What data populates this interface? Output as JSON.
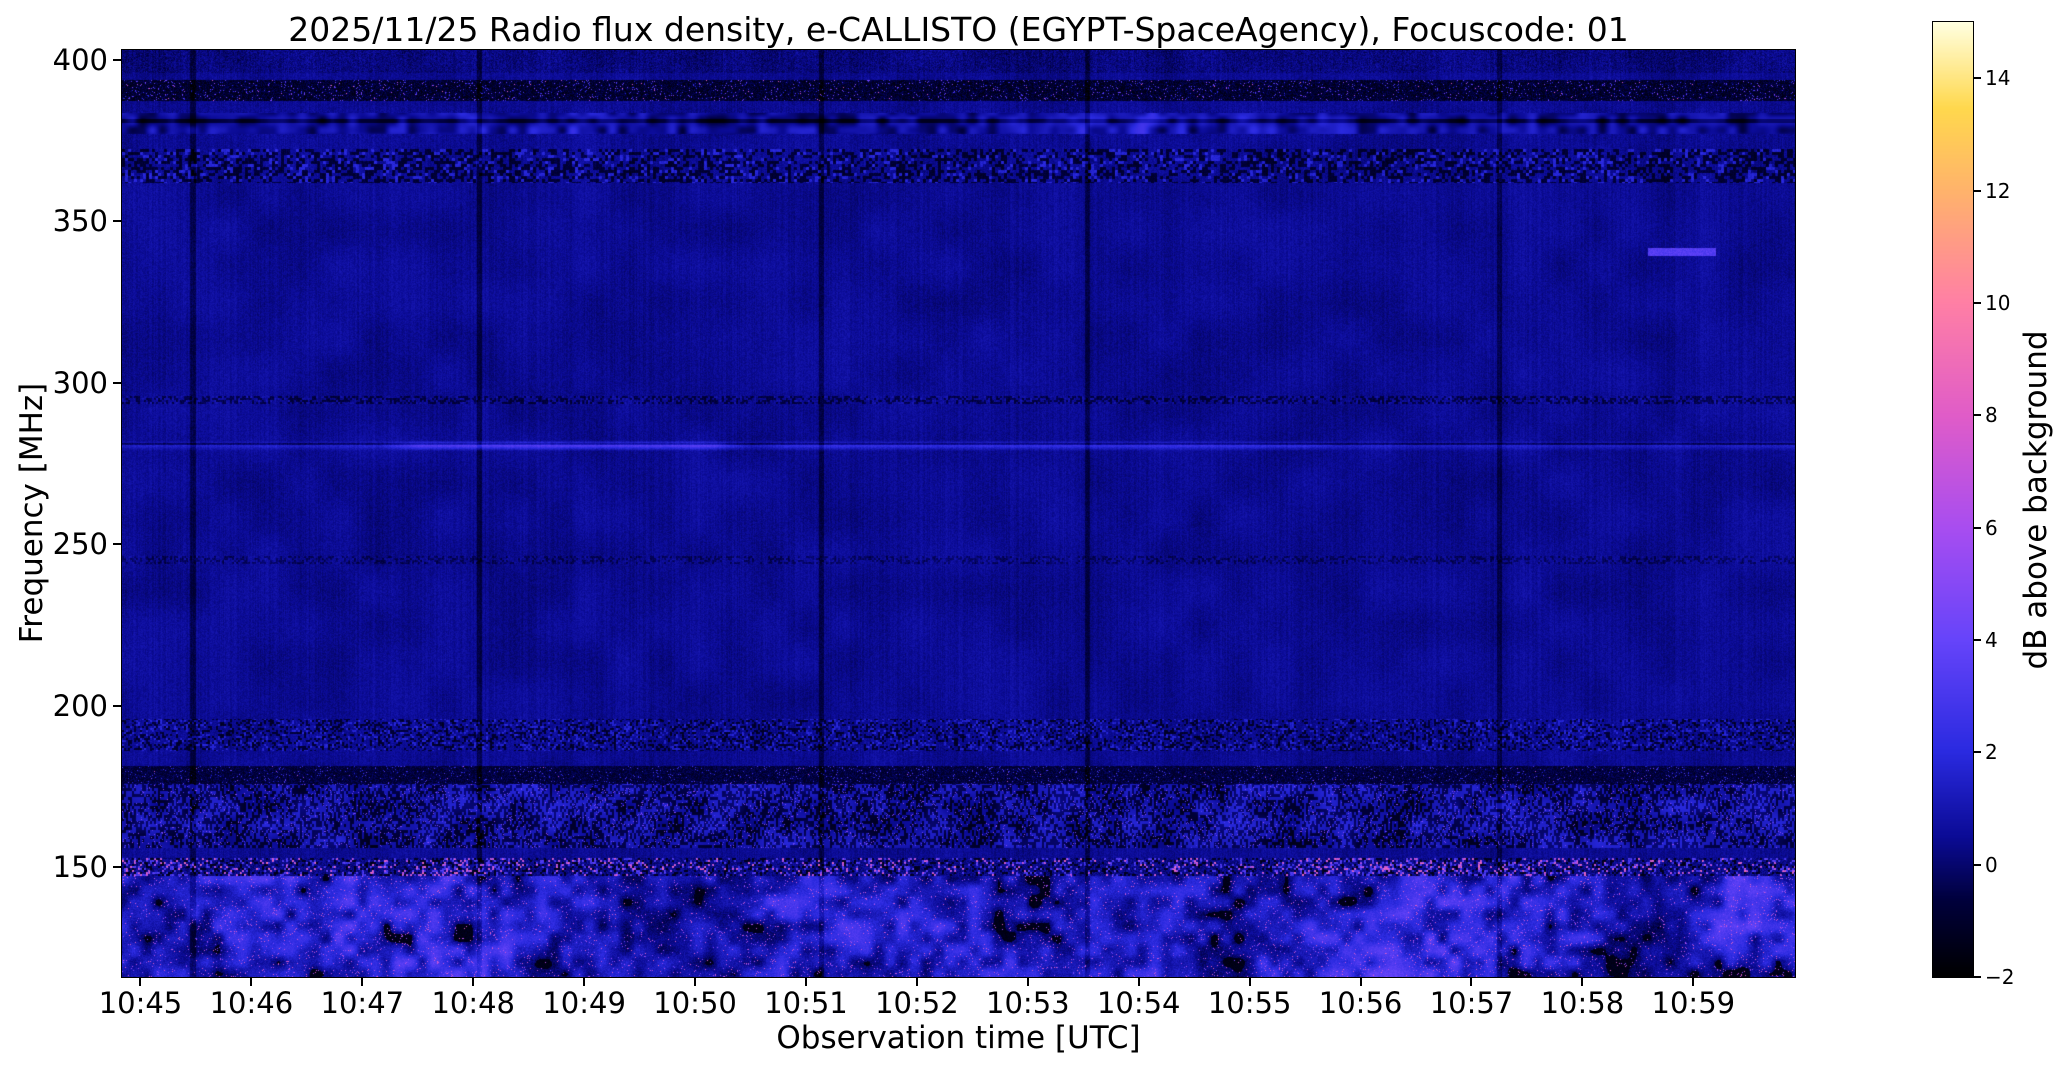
{
  "figure": {
    "background": "#ffffff"
  },
  "chart_data": {
    "type": "heatmap",
    "title": "2025/11/25  Radio flux density, e-CALLISTO (EGYPT-SpaceAgency), Focuscode: 01",
    "xlabel": "Observation time [UTC]",
    "ylabel": "Frequency [MHz]",
    "x_axis": {
      "tick_labels": [
        "10:45",
        "10:46",
        "10:47",
        "10:48",
        "10:49",
        "10:50",
        "10:51",
        "10:52",
        "10:53",
        "10:54",
        "10:55",
        "10:56",
        "10:57",
        "10:58",
        "10:59"
      ],
      "tick_interval_s": 60,
      "domain_s": [
        -10,
        895
      ]
    },
    "y_axis": {
      "min": 116,
      "max": 403,
      "tick_values": [
        400,
        350,
        300,
        250,
        200,
        150
      ]
    },
    "colorbar": {
      "label": "dB above background",
      "min": -2,
      "max": 15,
      "ticks": [
        -2,
        0,
        2,
        4,
        6,
        8,
        10,
        12,
        14
      ],
      "stops": [
        [
          0.0,
          "#000000"
        ],
        [
          0.08,
          "#00003c"
        ],
        [
          0.147,
          "#0b0b96"
        ],
        [
          0.235,
          "#2a2ae0"
        ],
        [
          0.353,
          "#6644fa"
        ],
        [
          0.47,
          "#a84df0"
        ],
        [
          0.588,
          "#e05cc8"
        ],
        [
          0.706,
          "#ff7fa5"
        ],
        [
          0.824,
          "#ffb36b"
        ],
        [
          0.91,
          "#ffd84d"
        ],
        [
          1.0,
          "#ffffe0"
        ]
      ]
    },
    "background_model": {
      "level": 0.45,
      "pixel_noise": 0.6,
      "column_noise": 0.35,
      "patch_noise": 0.5,
      "patch_scale": 36
    },
    "features": {
      "bands": [
        {
          "name": "top-edge-noise",
          "f": [
            396,
            403.1
          ],
          "style": "noisy",
          "offset": -0.25,
          "amp": 0.45
        },
        {
          "name": "rfi-390",
          "f": [
            387.5,
            394
          ],
          "style": "rfi_dark_speckle",
          "base": -1.7,
          "spread": 1.5,
          "speck_p": 0.05,
          "speck_v": [
            1.5,
            5
          ],
          "hot_p": 0.004,
          "hot_v": [
            5,
            9
          ]
        },
        {
          "name": "rfi-380-blobs",
          "f": [
            377,
            383.5
          ],
          "style": "blobs",
          "base": -0.7,
          "amp": 2.4,
          "scale": 10,
          "events": [
            {
              "t": [
                165,
                240
              ],
              "boost": 1.6
            },
            {
              "t": [
                490,
                550
              ],
              "boost": 2.2
            },
            {
              "t": [
                595,
                640
              ],
              "boost": 1.0
            }
          ]
        },
        {
          "name": "dark-line-381",
          "f": [
            380.6,
            381.8
          ],
          "style": "dark_line",
          "drop": 1.2
        },
        {
          "name": "dotted-367",
          "f": [
            362,
            372.5
          ],
          "style": "dotted",
          "cell": 3,
          "p": 0.42,
          "dark": -1.3,
          "bright": 1.3
        },
        {
          "name": "event-341",
          "f": [
            339.5,
            342
          ],
          "style": "event_dash",
          "t": [
            815,
            852
          ],
          "value": 3.4
        },
        {
          "name": "dotted-295",
          "f": [
            293.5,
            296
          ],
          "style": "dotted",
          "cell": 2,
          "p": 0.45,
          "dark": -1.0,
          "bright": 0.4
        },
        {
          "name": "emission-280",
          "f": [
            279,
            282.3
          ],
          "style": "emission_line",
          "gain": 1.1,
          "events": [
            {
              "t": [
                150,
                310
              ],
              "boost": 1.8
            },
            {
              "t": [
                350,
                630
              ],
              "boost": 0.8
            }
          ]
        },
        {
          "name": "dark-line-281",
          "f": [
            280.9,
            281.5
          ],
          "style": "dark_line",
          "drop": 1.3
        },
        {
          "name": "dotted-245",
          "f": [
            244,
            246.5
          ],
          "style": "dotted",
          "cell": 2,
          "p": 0.4,
          "dark": -0.7,
          "bright": 0.2
        },
        {
          "name": "dotted-191",
          "f": [
            186,
            196
          ],
          "style": "dotted",
          "cell": 2,
          "p": 0.28,
          "dark": -1.4,
          "bright": 1.2
        },
        {
          "name": "rfi-178-black",
          "f": [
            176,
            181.5
          ],
          "style": "rfi_dark_speckle",
          "base": -1.3,
          "spread": 1.2,
          "speck_p": 0.04,
          "speck_v": [
            1.5,
            3.5
          ],
          "hot_p": 0.002,
          "hot_v": [
            4,
            7
          ]
        },
        {
          "name": "stripes-165",
          "f": [
            156,
            176
          ],
          "style": "stripe_speckle",
          "base": -0.6,
          "amp": 2.2,
          "bright_p": 0.035,
          "bright_v": [
            2.5,
            5.5
          ]
        },
        {
          "name": "active-150",
          "f": [
            147.5,
            153
          ],
          "style": "bright_speckle",
          "black_p": 0.18,
          "mid_p": 0.2,
          "mid_v": [
            2,
            4
          ],
          "hot_p": 0.12,
          "hot_v": [
            4.5,
            9.5
          ]
        },
        {
          "name": "bottom-mottled",
          "f": [
            116,
            147.5
          ],
          "style": "mottled",
          "base": -1.3,
          "amp": 6.5,
          "scale": 12,
          "hot_p": 0.05,
          "hot_v": [
            4,
            8.5
          ]
        }
      ],
      "vertical_lines": {
        "times_s": [
          28,
          183,
          368,
          512,
          735
        ],
        "drop": 0.9,
        "halfwidth_s": 1.5
      }
    }
  }
}
